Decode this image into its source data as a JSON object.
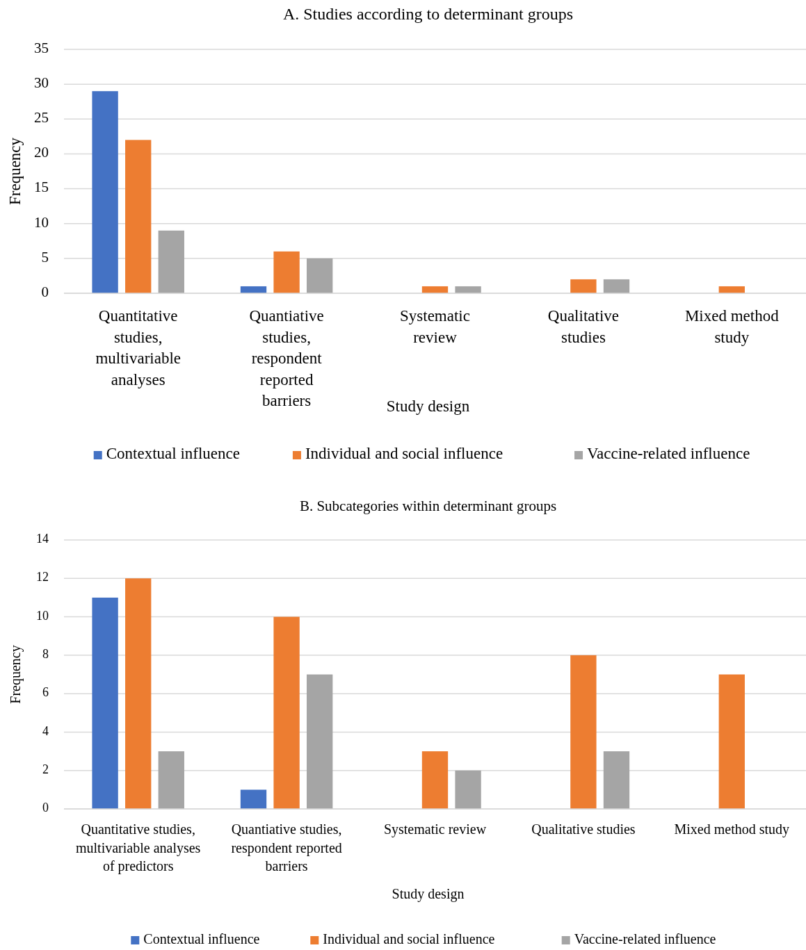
{
  "chart_data": [
    {
      "type": "bar",
      "title": "A. Studies according to determinant groups",
      "xlabel": "Study design",
      "ylabel": "Frequency",
      "categories": [
        "Quantitative studies, multivariable analyses",
        "Quantiative studies, respondent reported barriers",
        "Systematic review",
        "Qualitative studies",
        "Mixed method study"
      ],
      "series": [
        {
          "name": "Contextual influence",
          "color": "#4472c4",
          "values": [
            29,
            1,
            0,
            0,
            0
          ]
        },
        {
          "name": "Individual and social influence",
          "color": "#ed7d31",
          "values": [
            22,
            6,
            1,
            2,
            1
          ]
        },
        {
          "name": "Vaccine-related influence",
          "color": "#a5a5a5",
          "values": [
            9,
            5,
            1,
            2,
            0
          ]
        }
      ],
      "ylim": [
        0,
        35
      ],
      "yticks": [
        0,
        5,
        10,
        15,
        20,
        25,
        30,
        35
      ],
      "grid": "y",
      "legend": "bottom"
    },
    {
      "type": "bar",
      "title": "B. Subcategories within determinant groups",
      "xlabel": "Study design",
      "ylabel": "Frequency",
      "categories": [
        "Quantitative studies, multivariable analyses of predictors",
        "Quantiative studies, respondent reported barriers",
        "Systematic review",
        "Qualitative studies",
        "Mixed method study"
      ],
      "series": [
        {
          "name": "Contextual influence",
          "color": "#4472c4",
          "values": [
            11,
            1,
            0,
            0,
            0
          ]
        },
        {
          "name": "Individual and social influence",
          "color": "#ed7d31",
          "values": [
            12,
            10,
            3,
            8,
            7
          ]
        },
        {
          "name": "Vaccine-related influence",
          "color": "#a5a5a5",
          "values": [
            3,
            7,
            2,
            3,
            0
          ]
        }
      ],
      "ylim": [
        0,
        14
      ],
      "yticks": [
        0,
        2,
        4,
        6,
        8,
        10,
        12,
        14
      ],
      "grid": "y",
      "legend": "bottom"
    }
  ]
}
